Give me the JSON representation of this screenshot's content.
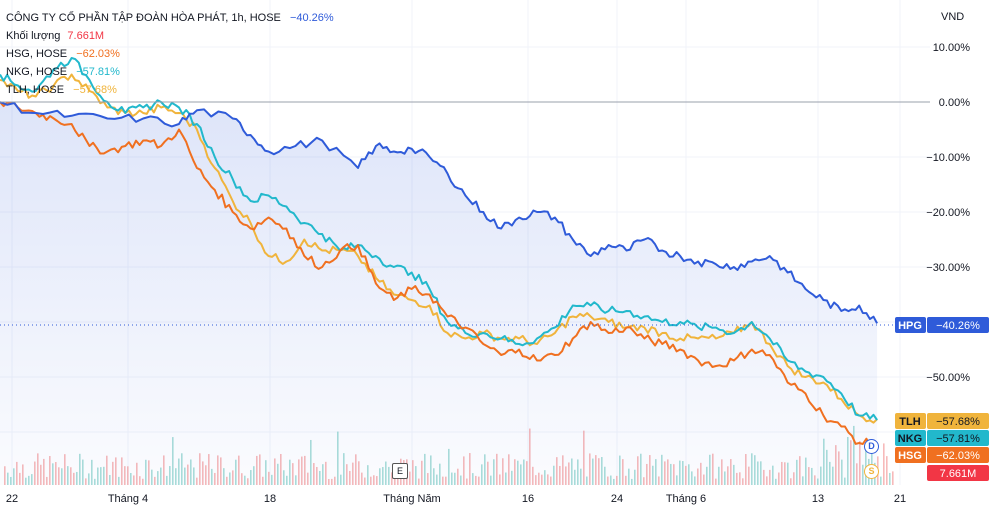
{
  "legend": {
    "main_title": "CÔNG TY CỔ PHẦN TẬP ĐOÀN HÒA PHÁT, 1h, HOSE",
    "main_pct": "−40.26%",
    "volume_label": "Khối lượng",
    "volume_value": "7.661M",
    "hsg_label": "HSG, HOSE",
    "hsg_pct": "−62.03%",
    "nkg_label": "NKG, HOSE",
    "nkg_pct": "−57.81%",
    "tlh_label": "TLH, HOSE",
    "tlh_pct": "−57.68%"
  },
  "axis": {
    "currency": "VND",
    "y_ticks": [
      "10.00%",
      "0.00%",
      "−10.00%",
      "−20.00%",
      "−30.00%",
      "−50.00%"
    ],
    "x_ticks": [
      "22",
      "Tháng 4",
      "18",
      "Tháng Năm",
      "16",
      "24",
      "Tháng 6",
      "13",
      "21"
    ]
  },
  "markers": {
    "e": "E",
    "d": "D",
    "s": "S"
  },
  "badges": {
    "hpg": {
      "label": "HPG",
      "value": "−40.26%"
    },
    "tlh": {
      "label": "TLH",
      "value": "−57.68%"
    },
    "nkg": {
      "label": "NKG",
      "value": "−57.81%"
    },
    "hsg": {
      "label": "HSG",
      "value": "−62.03%"
    },
    "vol": {
      "value": "7.661M"
    }
  },
  "colors": {
    "hpg": "#2f5bd9",
    "hsg": "#f07020",
    "nkg": "#22b8cc",
    "tlh": "#f0b43c",
    "vol_up": "#8fd3cc",
    "vol_down": "#f4a3a3",
    "vol_badge": "#f23645"
  },
  "chart_data": {
    "type": "line",
    "title": "CÔNG TY CỔ PHẦN TẬP ĐOÀN HÒA PHÁT, 1h, HOSE",
    "ylabel": "VND",
    "x_labels": [
      "22",
      "Tháng 4",
      "18",
      "Tháng Năm",
      "16",
      "24",
      "Tháng 6",
      "13",
      "21"
    ],
    "x_domain": [
      0,
      100
    ],
    "ylim": [
      -60,
      15
    ],
    "series": [
      {
        "name": "HPG",
        "x": [
          0,
          4,
          8,
          12,
          16,
          20,
          22,
          26,
          28,
          30,
          33,
          36,
          40,
          42,
          44,
          46,
          48,
          50,
          52,
          54,
          56,
          58,
          60,
          62,
          64,
          66,
          68,
          70,
          72,
          74,
          76,
          78,
          80,
          82,
          84,
          86,
          88,
          90,
          92,
          94,
          96,
          98
        ],
        "values": [
          0,
          -2,
          -2.5,
          -3,
          -3,
          -4,
          -1.5,
          -3,
          -6,
          -9,
          -8,
          -7,
          -12,
          -8,
          -9,
          -8.5,
          -10,
          -13,
          -17,
          -20,
          -23,
          -21,
          -20,
          -21,
          -25,
          -28,
          -26,
          -27,
          -25,
          -27,
          -28,
          -29,
          -29.5,
          -30,
          -29,
          -28,
          -31,
          -34,
          -36,
          -38,
          -37,
          -40.26
        ]
      },
      {
        "name": "HSG",
        "x": [
          0,
          2,
          4,
          6,
          8,
          10,
          12,
          14,
          16,
          18,
          20,
          22,
          24,
          26,
          28,
          30,
          32,
          34,
          36,
          38,
          40,
          42,
          44,
          46,
          48,
          50,
          52,
          54,
          56,
          58,
          60,
          62,
          64,
          66,
          68,
          70,
          72,
          74,
          76,
          78,
          80,
          82,
          84,
          86,
          88,
          90,
          92,
          94,
          96,
          98
        ],
        "values": [
          0,
          -1,
          -2,
          -3,
          -4,
          -8,
          -9,
          -8,
          -7,
          -8,
          -5,
          -12,
          -16,
          -20,
          -23,
          -21,
          -23,
          -28,
          -30,
          -27,
          -26,
          -33,
          -36,
          -34,
          -35,
          -39,
          -41,
          -44,
          -46,
          -45,
          -47,
          -46,
          -43,
          -40,
          -42,
          -41,
          -43,
          -44,
          -45,
          -47,
          -48,
          -47,
          -45,
          -46,
          -51,
          -53,
          -57,
          -59,
          -62,
          -62.03
        ]
      },
      {
        "name": "NKG",
        "x": [
          0,
          2,
          4,
          6,
          8,
          10,
          12,
          14,
          16,
          18,
          20,
          22,
          24,
          26,
          28,
          30,
          32,
          34,
          36,
          38,
          40,
          42,
          44,
          46,
          48,
          50,
          52,
          54,
          56,
          58,
          60,
          62,
          64,
          66,
          68,
          70,
          72,
          74,
          76,
          78,
          80,
          82,
          84,
          86,
          88,
          90,
          92,
          94,
          96,
          98
        ],
        "values": [
          5,
          3,
          2,
          6,
          8,
          4,
          0,
          -2,
          -1,
          0,
          -1,
          -4,
          -10,
          -14,
          -18,
          -17,
          -19,
          -22,
          -24,
          -27,
          -26,
          -28,
          -30,
          -31,
          -34,
          -40,
          -42,
          -42,
          -43,
          -44,
          -43,
          -41,
          -37,
          -37,
          -38,
          -38,
          -39,
          -40,
          -40,
          -41,
          -41,
          -42,
          -40,
          -43,
          -47,
          -49,
          -50,
          -53,
          -57,
          -57.81
        ]
      },
      {
        "name": "TLH",
        "x": [
          0,
          2,
          4,
          6,
          8,
          10,
          12,
          14,
          16,
          18,
          20,
          22,
          24,
          26,
          28,
          30,
          32,
          34,
          36,
          38,
          40,
          42,
          44,
          46,
          48,
          50,
          52,
          54,
          56,
          58,
          60,
          62,
          64,
          66,
          68,
          70,
          72,
          74,
          76,
          78,
          80,
          82,
          84,
          86,
          88,
          90,
          92,
          94,
          96,
          98
        ],
        "values": [
          4,
          2,
          1,
          3,
          5,
          2,
          -1,
          -2,
          -2,
          -1,
          -2,
          -5,
          -12,
          -18,
          -22,
          -28,
          -29,
          -25,
          -27,
          -27,
          -28,
          -32,
          -35,
          -36,
          -37,
          -42,
          -43,
          -42,
          -43,
          -43,
          -44,
          -42,
          -39,
          -39,
          -40,
          -41,
          -41,
          -42,
          -43,
          -43,
          -43,
          -42,
          -40,
          -44,
          -48,
          -50,
          -51,
          -54,
          -57,
          -57.68
        ]
      }
    ]
  }
}
